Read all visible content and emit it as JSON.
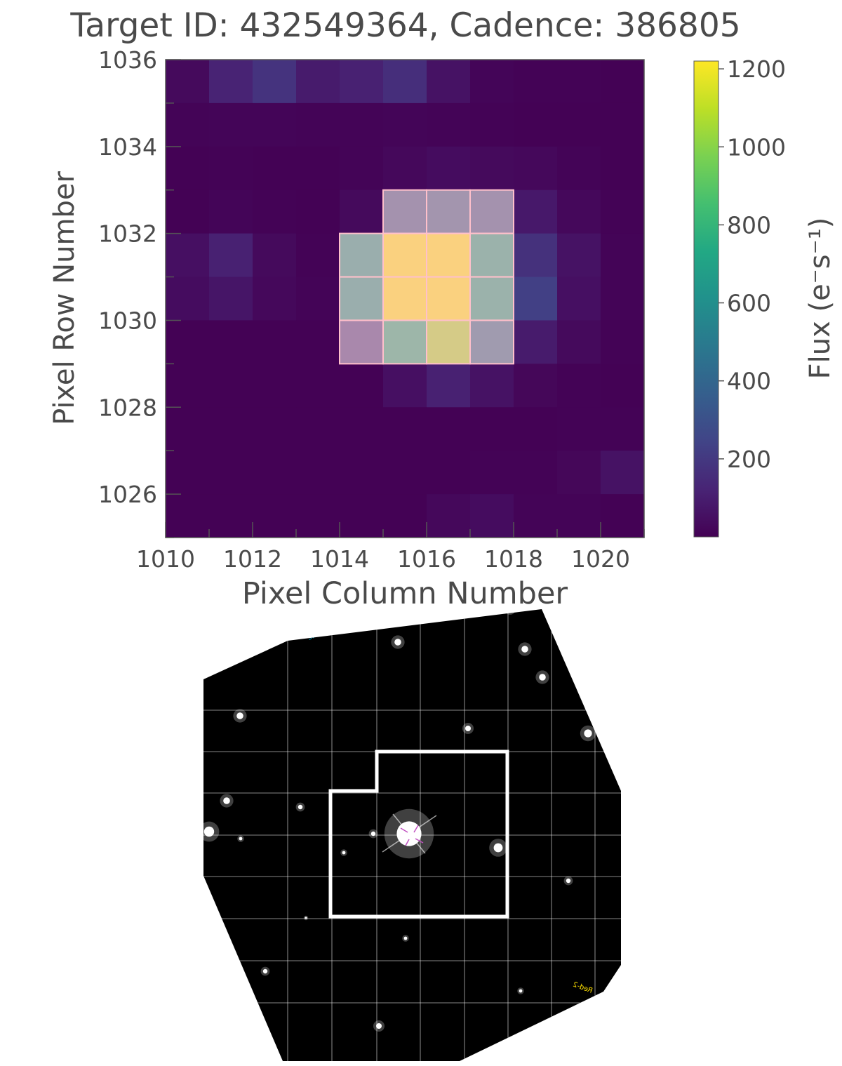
{
  "title": "Target ID: 432549364, Cadence: 386805",
  "chart_data": {
    "type": "heatmap",
    "title": "Target ID: 432549364, Cadence: 386805",
    "xlabel": "Pixel Column Number",
    "ylabel": "Pixel Row Number",
    "x_ticks": [
      "1010",
      "1012",
      "1014",
      "1016",
      "1018",
      "1020"
    ],
    "y_ticks": [
      "1026",
      "1028",
      "1030",
      "1032",
      "1034",
      "1036"
    ],
    "xlim": [
      1010,
      1021
    ],
    "ylim": [
      1025,
      1036
    ],
    "colormap": "viridis",
    "colorbar": {
      "label": "Flux (e⁻s⁻¹)",
      "range": [
        0,
        1220
      ],
      "ticks": [
        "200",
        "400",
        "600",
        "800",
        "1000",
        "1200"
      ]
    },
    "aperture_color": "#ffc0cb",
    "columns": [
      1010,
      1011,
      1012,
      1013,
      1014,
      1015,
      1016,
      1017,
      1018,
      1019,
      1020
    ],
    "rows": [
      1035,
      1034,
      1033,
      1032,
      1031,
      1030,
      1029,
      1028,
      1027,
      1026,
      1025
    ],
    "flux": [
      [
        30,
        120,
        180,
        90,
        110,
        160,
        60,
        15,
        8,
        8,
        5
      ],
      [
        10,
        15,
        15,
        10,
        10,
        15,
        10,
        8,
        5,
        5,
        5
      ],
      [
        5,
        8,
        5,
        5,
        10,
        25,
        40,
        30,
        25,
        10,
        5
      ],
      [
        5,
        15,
        8,
        5,
        30,
        350,
        380,
        350,
        80,
        25,
        8
      ],
      [
        50,
        110,
        30,
        8,
        650,
        1200,
        1200,
        700,
        170,
        60,
        10
      ],
      [
        40,
        70,
        25,
        10,
        650,
        1200,
        1200,
        700,
        230,
        50,
        10
      ],
      [
        5,
        5,
        5,
        5,
        250,
        750,
        1050,
        450,
        90,
        30,
        8
      ],
      [
        5,
        5,
        5,
        5,
        5,
        50,
        110,
        60,
        20,
        8,
        5
      ],
      [
        5,
        5,
        5,
        5,
        5,
        5,
        5,
        5,
        5,
        8,
        8
      ],
      [
        5,
        5,
        5,
        5,
        5,
        5,
        5,
        8,
        8,
        20,
        60
      ],
      [
        5,
        5,
        5,
        5,
        5,
        5,
        25,
        40,
        10,
        10,
        5
      ]
    ],
    "aperture_mask": [
      [
        0,
        0,
        0,
        0,
        0,
        0,
        0,
        0,
        0,
        0,
        0
      ],
      [
        0,
        0,
        0,
        0,
        0,
        0,
        0,
        0,
        0,
        0,
        0
      ],
      [
        0,
        0,
        0,
        0,
        0,
        0,
        0,
        0,
        0,
        0,
        0
      ],
      [
        0,
        0,
        0,
        0,
        0,
        1,
        1,
        1,
        0,
        0,
        0
      ],
      [
        0,
        0,
        0,
        0,
        1,
        1,
        1,
        1,
        0,
        0,
        0
      ],
      [
        0,
        0,
        0,
        0,
        1,
        1,
        1,
        1,
        0,
        0,
        0
      ],
      [
        0,
        0,
        0,
        0,
        1,
        1,
        1,
        1,
        0,
        0,
        0
      ],
      [
        0,
        0,
        0,
        0,
        0,
        0,
        0,
        0,
        0,
        0,
        0
      ],
      [
        0,
        0,
        0,
        0,
        0,
        0,
        0,
        0,
        0,
        0,
        0
      ],
      [
        0,
        0,
        0,
        0,
        0,
        0,
        0,
        0,
        0,
        0,
        0
      ],
      [
        0,
        0,
        0,
        0,
        0,
        0,
        0,
        0,
        0,
        0,
        0
      ]
    ]
  },
  "sky_image": {
    "background": "#000000",
    "grid_color": "#ffffff",
    "aperture_color": "#ffffff",
    "target_marker_color": "#c050c0",
    "label_top": "3.25°x3.495'",
    "label_right": "Red-2"
  }
}
